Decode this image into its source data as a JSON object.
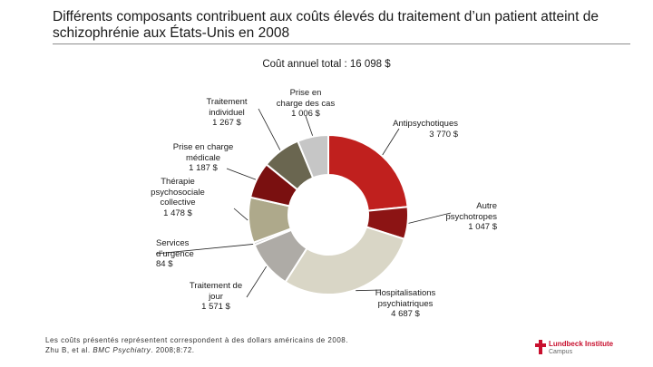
{
  "title": "Différents composants contribuent aux coûts élevés du traitement d’un patient atteint de schizophrénie aux États-Unis en 2008",
  "total_label": "Coût annuel total : 16 098 $",
  "chart_data": {
    "type": "pie",
    "donut": true,
    "title": "Coût annuel total : 16 098 $",
    "total": 16098,
    "currency": "$",
    "slices": [
      {
        "name": "Antipsychotiques",
        "value": 3770,
        "value_label": "3 770 $",
        "color": "#c0201e"
      },
      {
        "name": "Autre\npsychotropes",
        "value": 1047,
        "value_label": "1 047 $",
        "color": "#8c1414"
      },
      {
        "name": "Hospitalisations\npsychiatriques",
        "value": 4687,
        "value_label": "4 687 $",
        "color": "#d9d6c6"
      },
      {
        "name": "Traitement de\njour",
        "value": 1571,
        "value_label": "1 571 $",
        "color": "#aeaba6"
      },
      {
        "name": "Services\nd’urgence",
        "value": 84,
        "value_label": "84 $",
        "color": "#c8c8c8"
      },
      {
        "name": "Thérapie\npsychosociale\ncollective",
        "value": 1478,
        "value_label": "1 478 $",
        "color": "#aea98b"
      },
      {
        "name": "Prise en charge\nmédicale",
        "value": 1187,
        "value_label": "1 187 $",
        "color": "#7a1010"
      },
      {
        "name": "Traitement\nindividuel",
        "value": 1267,
        "value_label": "1 267 $",
        "color": "#6a6650"
      },
      {
        "name": "Prise en\ncharge des cas",
        "value": 1006,
        "value_label": "1 006 $",
        "color": "#c6c6c6"
      }
    ]
  },
  "footnote": {
    "line1": "Les coûts présentés représentent correspondent à des dollars américains de 2008.",
    "line2_prefix": "Zhu B, et al. ",
    "line2_journal": "BMC Psychiatry",
    "line2_suffix": ". 2008;8:72."
  },
  "logo": {
    "name": "Lundbeck Institute",
    "sub": "Campus"
  }
}
